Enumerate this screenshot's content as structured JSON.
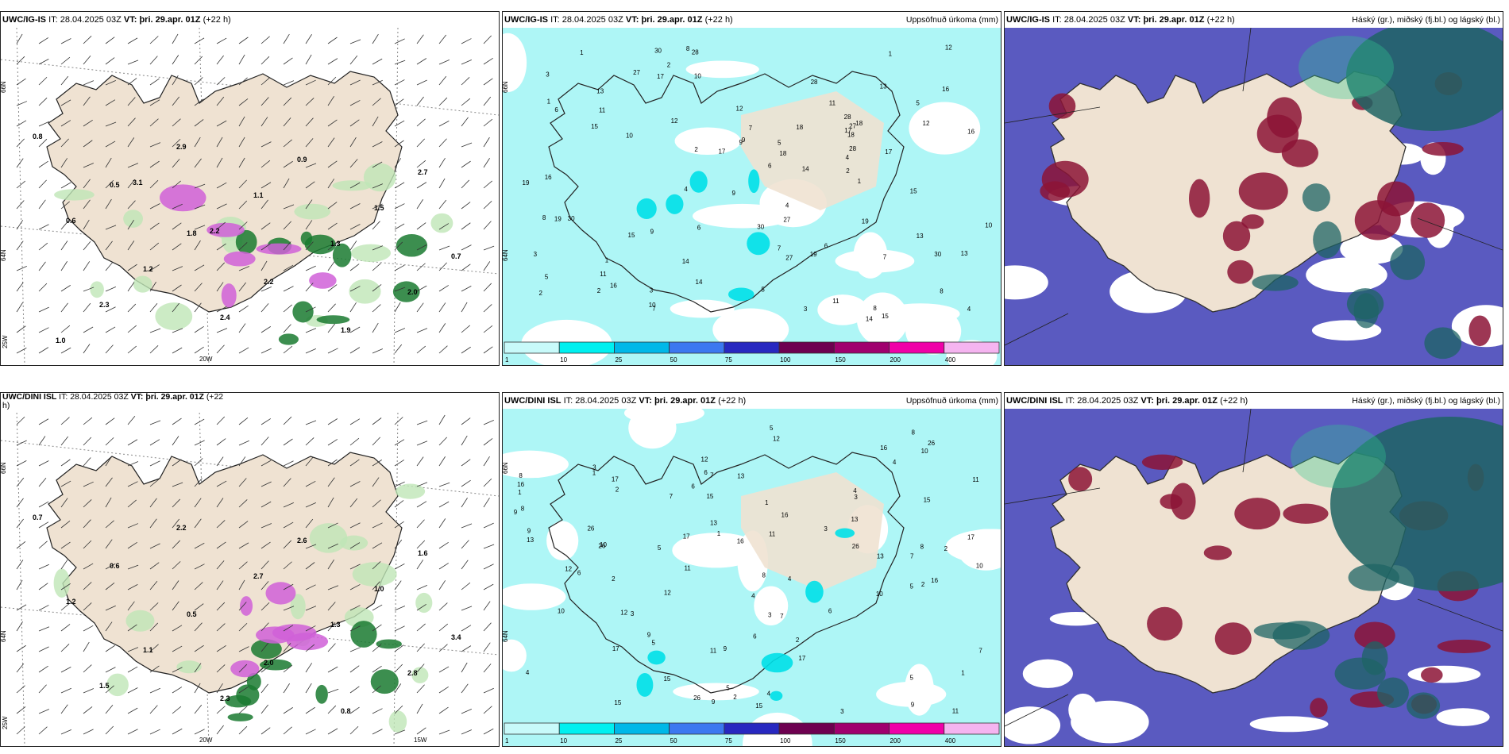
{
  "panels": [
    {
      "model": "UWC/IG-IS",
      "it_label": "IT:",
      "it_value": "28.04.2025 03Z",
      "vt_label": "VT:",
      "vt_value": "þri. 29.apr. 01Z",
      "lead": "(+22 h)",
      "title": "",
      "lat_labels": [
        "66N",
        "64N"
      ],
      "lon_labels": [
        "25W",
        "20W"
      ]
    },
    {
      "model": "UWC/IG-IS",
      "it_label": "IT:",
      "it_value": "28.04.2025 03Z",
      "vt_label": "VT:",
      "vt_value": "þri. 29.apr. 01Z",
      "lead": "(+22 h)",
      "title": "Uppsöfnuð úrkoma (mm)",
      "lat_labels": [
        "66N",
        "64N"
      ]
    },
    {
      "model": "UWC/IG-IS",
      "it_label": "IT:",
      "it_value": "28.04.2025 03Z",
      "vt_label": "VT:",
      "vt_value": "þri. 29.apr. 01Z",
      "lead": "(+22 h)",
      "title": "Háský (gr.), miðský (fj.bl.) og lágský (bl.)"
    },
    {
      "model": "UWC/DINI ISL",
      "it_label": "IT:",
      "it_value": "28.04.2025 03Z",
      "vt_label": "VT:",
      "vt_value": "þri. 29.apr. 01Z",
      "lead": "(+22",
      "lead2": "h)",
      "title": "",
      "lat_labels": [
        "66N",
        "64N"
      ],
      "lon_labels": [
        "25W",
        "20W",
        "15W"
      ]
    },
    {
      "model": "UWC/DINI ISL",
      "it_label": "IT:",
      "it_value": "28.04.2025 03Z",
      "vt_label": "VT:",
      "vt_value": "þri. 29.apr. 01Z",
      "lead": "(+22 h)",
      "title": "Uppsöfnuð úrkoma (mm)",
      "lat_labels": [
        "66N",
        "64N"
      ]
    },
    {
      "model": "UWC/DINI ISL",
      "it_label": "IT:",
      "it_value": "28.04.2025 03Z",
      "vt_label": "VT:",
      "vt_value": "þri. 29.apr. 01Z",
      "lead": "(+22 h)",
      "title": "Háský (gr.), miðský (fj.bl.) og lágský (bl.)"
    }
  ],
  "legend": {
    "ticks": [
      "1",
      "10",
      "25",
      "50",
      "75",
      "100",
      "150",
      "200",
      "400"
    ],
    "colors": [
      "#c8fafa",
      "#00f0f0",
      "#00b8e8",
      "#3c78f0",
      "#2828c0",
      "#6e0050",
      "#a0006e",
      "#f000a8",
      "#f5b4f0"
    ]
  },
  "precip_labels_top": [
    "1",
    "2",
    "7",
    "5",
    "10",
    "4",
    "6",
    "9",
    "3",
    "8",
    "11",
    "13",
    "12",
    "17",
    "14",
    "19",
    "18",
    "28",
    "27",
    "16",
    "15",
    "30"
  ],
  "precip_labels_bottom": [
    "2",
    "3",
    "5",
    "4",
    "9",
    "8",
    "6",
    "7",
    "11",
    "10",
    "12",
    "17",
    "13",
    "16",
    "26",
    "15",
    "1"
  ],
  "snow_labels_top": [
    "0.8",
    "0.5",
    "1.8",
    "2.2",
    "1.9",
    "2.7",
    "0.6",
    "1.2",
    "2.4",
    "0.9",
    "1.5",
    "0.7",
    "2.3",
    "2.9",
    "1.1",
    "1.3",
    "2.0",
    "1.0",
    "3.1",
    "2.2"
  ],
  "snow_labels_bottom": [
    "0.7",
    "0.6",
    "0.5",
    "2.0",
    "0.8",
    "1.6",
    "1.2",
    "1.1",
    "2.3",
    "2.6",
    "1.0",
    "3.4",
    "1.5",
    "2.2",
    "2.7",
    "1.3",
    "2.8"
  ],
  "colors": {
    "land": "#efe2d2",
    "sea": "#ffffff",
    "cyan": "#aef6f6",
    "cyanStrong": "#00e0e8",
    "snow_green": "#1a7a30",
    "snow_light": "#bfe6b6",
    "pink": "#d060d8",
    "cloud_blue": "#5a5ac0",
    "cloud_red": "#8c1436",
    "cloud_teal": "#1e6464",
    "cloud_green": "#30c890"
  }
}
